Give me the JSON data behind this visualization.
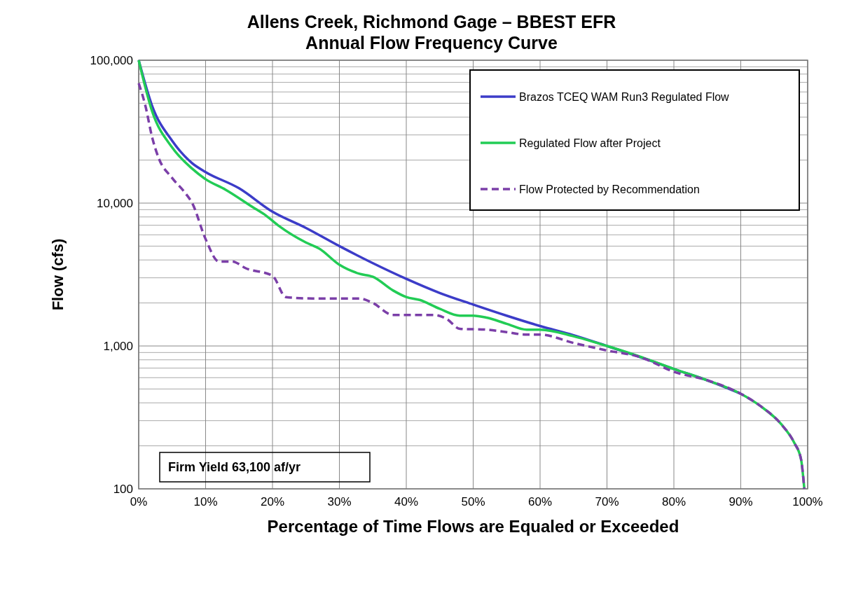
{
  "chart_data": {
    "type": "line",
    "title": "Allens Creek, Richmond Gage – BBEST EFR",
    "subtitle": "Annual Flow Frequency Curve",
    "xlabel": "Percentage of Time Flows are Equaled or Exceeded",
    "ylabel": "Flow (cfs)",
    "log": true,
    "grid": true,
    "legend": "top right",
    "xlim": [
      0,
      100
    ],
    "xticks": [
      {
        "value": 0,
        "label": "0%"
      },
      {
        "value": 10,
        "label": "10%"
      },
      {
        "value": 20,
        "label": "20%"
      },
      {
        "value": 30,
        "label": "30%"
      },
      {
        "value": 40,
        "label": "40%"
      },
      {
        "value": 50,
        "label": "50%"
      },
      {
        "value": 60,
        "label": "60%"
      },
      {
        "value": 70,
        "label": "70%"
      },
      {
        "value": 80,
        "label": "80%"
      },
      {
        "value": 90,
        "label": "90%"
      },
      {
        "value": 100,
        "label": "100%"
      }
    ],
    "ylim": [
      100,
      100000
    ],
    "yticks": [
      {
        "value": 100,
        "label": "100"
      },
      {
        "value": 200,
        "label": null
      },
      {
        "value": 300,
        "label": null
      },
      {
        "value": 400,
        "label": null
      },
      {
        "value": 500,
        "label": null
      },
      {
        "value": 600,
        "label": null
      },
      {
        "value": 700,
        "label": null
      },
      {
        "value": 800,
        "label": null
      },
      {
        "value": 900,
        "label": null
      },
      {
        "value": 1000,
        "label": "1,000"
      },
      {
        "value": 2000,
        "label": null
      },
      {
        "value": 3000,
        "label": null
      },
      {
        "value": 4000,
        "label": null
      },
      {
        "value": 5000,
        "label": null
      },
      {
        "value": 6000,
        "label": null
      },
      {
        "value": 7000,
        "label": null
      },
      {
        "value": 8000,
        "label": null
      },
      {
        "value": 9000,
        "label": null
      },
      {
        "value": 10000,
        "label": "10,000"
      },
      {
        "value": 20000,
        "label": null
      },
      {
        "value": 30000,
        "label": null
      },
      {
        "value": 40000,
        "label": null
      },
      {
        "value": 50000,
        "label": null
      },
      {
        "value": 60000,
        "label": null
      },
      {
        "value": 70000,
        "label": null
      },
      {
        "value": 80000,
        "label": null
      },
      {
        "value": 90000,
        "label": null
      },
      {
        "value": 100000,
        "label": "100,000"
      }
    ],
    "annotations": [
      "Firm Yield 63,100 af/yr"
    ],
    "series": [
      {
        "name": "Brazos TCEQ WAM Run3 Regulated Flow",
        "color": "#3c3cc8",
        "line_style": "solid",
        "x": [
          0,
          2,
          5,
          8,
          10,
          15,
          20,
          25,
          30,
          35,
          40,
          45,
          50,
          55,
          60,
          65,
          70,
          75,
          80,
          85,
          90
        ],
        "values": [
          100000,
          48000,
          27300,
          19000,
          16500,
          12700,
          8700,
          6700,
          5000,
          3800,
          2950,
          2350,
          1950,
          1630,
          1380,
          1190,
          1000,
          835,
          690,
          575,
          463
        ]
      },
      {
        "name": "Regulated Flow after Project",
        "color": "#22cc55",
        "line_style": "solid",
        "x": [
          0,
          2,
          5,
          8,
          10,
          13,
          17,
          19,
          21,
          25,
          27,
          30,
          33,
          35,
          38,
          40,
          42,
          45,
          48,
          50,
          52,
          55,
          58,
          60,
          65,
          70,
          75,
          80,
          85,
          90,
          93,
          96,
          98,
          99,
          99.5
        ],
        "values": [
          100000,
          44000,
          24500,
          17400,
          14700,
          12400,
          9400,
          8200,
          6900,
          5300,
          4800,
          3700,
          3200,
          3050,
          2450,
          2200,
          2100,
          1820,
          1630,
          1630,
          1580,
          1430,
          1300,
          1300,
          1170,
          1000,
          840,
          690,
          575,
          463,
          378,
          285,
          210,
          162,
          100
        ]
      },
      {
        "name": "Flow Protected by Recommendation",
        "color": "#7b3fa8",
        "line_style": "dashed",
        "x": [
          0,
          1,
          2,
          3,
          5,
          7,
          8,
          10,
          12,
          14,
          16,
          20,
          22,
          26,
          33,
          35,
          38,
          44,
          46,
          48,
          52,
          55,
          58,
          60,
          65,
          70,
          75,
          80,
          85,
          90,
          93,
          96,
          98,
          99,
          99.5
        ],
        "values": [
          69000,
          48000,
          29000,
          20600,
          15000,
          11700,
          10000,
          5600,
          3900,
          3900,
          3500,
          3100,
          2200,
          2150,
          2150,
          2000,
          1650,
          1650,
          1550,
          1320,
          1300,
          1250,
          1200,
          1200,
          1050,
          930,
          835,
          660,
          575,
          463,
          378,
          285,
          210,
          162,
          100
        ]
      }
    ]
  }
}
